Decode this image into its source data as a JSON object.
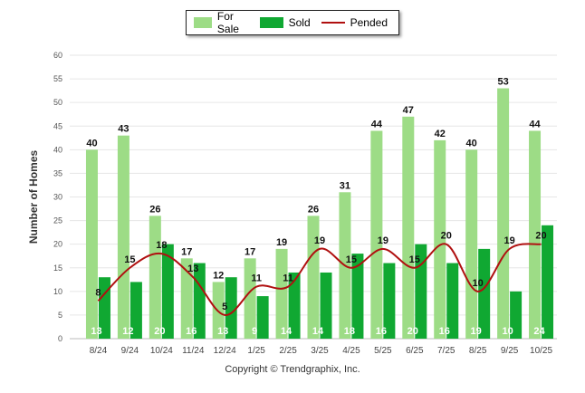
{
  "chart_data": {
    "type": "bar",
    "ylabel": "Number of Homes",
    "xlabel": "",
    "ylim": [
      0,
      60
    ],
    "yticks": [
      0,
      5,
      10,
      15,
      20,
      25,
      30,
      35,
      40,
      45,
      50,
      55,
      60
    ],
    "grid": true,
    "legend_position": "top-center",
    "categories": [
      "8/24",
      "9/24",
      "10/24",
      "11/24",
      "12/24",
      "1/25",
      "2/25",
      "3/25",
      "4/25",
      "5/25",
      "6/25",
      "7/25",
      "8/25",
      "9/25",
      "10/25"
    ],
    "series": [
      {
        "name": "For Sale",
        "type": "bar",
        "color": "#9ddc86",
        "values": [
          40,
          43,
          26,
          17,
          12,
          17,
          19,
          26,
          31,
          44,
          47,
          42,
          40,
          53,
          44
        ]
      },
      {
        "name": "Sold",
        "type": "bar",
        "color": "#10a832",
        "values": [
          13,
          12,
          20,
          16,
          13,
          9,
          14,
          14,
          18,
          16,
          20,
          16,
          19,
          10,
          24
        ]
      },
      {
        "name": "Pended",
        "type": "line",
        "color": "#b01010",
        "values": [
          8,
          15,
          18,
          13,
          5,
          11,
          11,
          19,
          15,
          19,
          15,
          20,
          10,
          19,
          20
        ]
      }
    ]
  },
  "copyright": "Copyright © Trendgraphix, Inc."
}
